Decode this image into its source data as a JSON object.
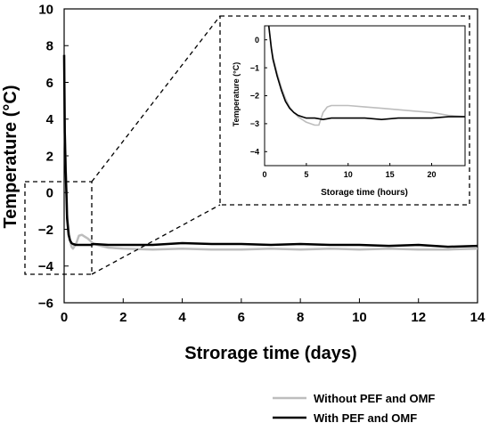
{
  "chart_data": [
    {
      "type": "line",
      "xlabel": "Strorage time (days)",
      "ylabel": "Temperature (°C)",
      "xlim": [
        0,
        14
      ],
      "ylim": [
        -6,
        10
      ],
      "xticks": [
        "0",
        "2",
        "4",
        "6",
        "8",
        "10",
        "12",
        "14"
      ],
      "yticks": [
        "10",
        "8",
        "6",
        "4",
        "2",
        "0",
        "−2",
        "−4",
        "−6"
      ],
      "grid": false,
      "legend_position": "bottom-right",
      "series": [
        {
          "name": "Without PEF and OMF",
          "color": "#bdbdbd",
          "x": [
            0,
            0.02,
            0.05,
            0.08,
            0.1,
            0.15,
            0.2,
            0.25,
            0.3,
            0.4,
            0.5,
            0.6,
            0.7,
            0.8,
            0.9,
            1.0,
            1.5,
            2,
            3,
            4,
            5,
            6,
            7,
            8,
            9,
            10,
            11,
            12,
            13,
            14
          ],
          "y": [
            7.5,
            3.5,
            1.5,
            0,
            -1.2,
            -2.0,
            -2.6,
            -2.95,
            -3.05,
            -2.8,
            -2.35,
            -2.3,
            -2.4,
            -2.5,
            -2.65,
            -2.8,
            -3.0,
            -3.05,
            -3.1,
            -3.05,
            -3.1,
            -3.1,
            -3.05,
            -3.1,
            -3.05,
            -3.1,
            -3.05,
            -3.1,
            -3.1,
            -3.05
          ]
        },
        {
          "name": "With PEF and OMF",
          "color": "#000000",
          "x": [
            0,
            0.02,
            0.05,
            0.08,
            0.1,
            0.15,
            0.2,
            0.25,
            0.3,
            0.4,
            0.5,
            0.6,
            0.7,
            0.8,
            0.9,
            1.0,
            1.5,
            2,
            3,
            4,
            5,
            6,
            7,
            8,
            9,
            10,
            11,
            12,
            13,
            14
          ],
          "y": [
            7.5,
            3.3,
            1.2,
            -0.3,
            -1.4,
            -2.3,
            -2.6,
            -2.75,
            -2.8,
            -2.85,
            -2.85,
            -2.85,
            -2.85,
            -2.85,
            -2.85,
            -2.8,
            -2.85,
            -2.85,
            -2.85,
            -2.75,
            -2.8,
            -2.8,
            -2.85,
            -2.8,
            -2.85,
            -2.85,
            -2.9,
            -2.85,
            -2.95,
            -2.9
          ]
        }
      ]
    },
    {
      "type": "line",
      "xlabel": "Storage time (hours)",
      "ylabel": "Temperature (°C)",
      "xlim": [
        0,
        24
      ],
      "ylim": [
        -4.5,
        0.5
      ],
      "xticks": [
        "0",
        "5",
        "10",
        "15",
        "20"
      ],
      "yticks": [
        "0",
        "−1",
        "−2",
        "−3",
        "−4"
      ],
      "grid": false,
      "series": [
        {
          "name": "Without PEF and OMF",
          "color": "#bdbdbd",
          "x": [
            0.5,
            0.8,
            1.0,
            1.5,
            2,
            2.5,
            3,
            3.5,
            4,
            4.5,
            5,
            5.5,
            6,
            6.5,
            7,
            7.5,
            8,
            9,
            10,
            12,
            14,
            16,
            18,
            20,
            22,
            24
          ],
          "y": [
            0.5,
            -0.2,
            -0.6,
            -1.2,
            -1.7,
            -2.1,
            -2.4,
            -2.6,
            -2.75,
            -2.85,
            -2.95,
            -3.0,
            -3.05,
            -3.05,
            -2.6,
            -2.4,
            -2.35,
            -2.35,
            -2.35,
            -2.4,
            -2.45,
            -2.5,
            -2.55,
            -2.6,
            -2.7,
            -2.75
          ]
        },
        {
          "name": "With PEF and OMF",
          "color": "#000000",
          "x": [
            0.5,
            0.8,
            1.0,
            1.5,
            2,
            2.5,
            3,
            3.5,
            4,
            4.5,
            5,
            6,
            7,
            8,
            10,
            12,
            14,
            16,
            18,
            20,
            22,
            24
          ],
          "y": [
            0.5,
            -0.3,
            -0.7,
            -1.3,
            -1.8,
            -2.2,
            -2.45,
            -2.6,
            -2.7,
            -2.75,
            -2.8,
            -2.8,
            -2.85,
            -2.8,
            -2.8,
            -2.8,
            -2.85,
            -2.8,
            -2.8,
            -2.8,
            -2.75,
            -2.75
          ]
        }
      ]
    }
  ]
}
